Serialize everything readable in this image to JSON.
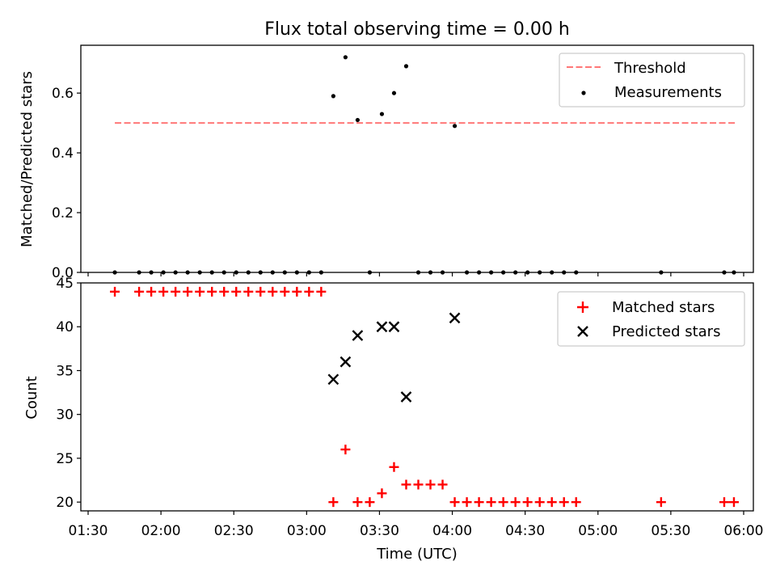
{
  "chart_data": [
    {
      "type": "scatter",
      "title": "Flux total observing time = 0.00 h",
      "ylabel": "Matched/Predicted stars",
      "xlim": [
        "01:27",
        "06:04"
      ],
      "ylim": [
        0,
        0.76
      ],
      "yticks": [
        "0.0",
        "0.2",
        "0.4",
        "0.6"
      ],
      "ytick_values": [
        0,
        0.2,
        0.4,
        0.6
      ],
      "legend_location": "top-right",
      "series": [
        {
          "name": "Threshold",
          "style": "dashed-line",
          "color": "#ff7777",
          "x": [
            "01:41",
            "05:57"
          ],
          "y": [
            0.5,
            0.5
          ]
        },
        {
          "name": "Measurements",
          "style": "points",
          "color": "#000000",
          "x": [
            "01:41",
            "01:51",
            "01:56",
            "02:01",
            "02:06",
            "02:11",
            "02:16",
            "02:21",
            "02:26",
            "02:31",
            "02:36",
            "02:41",
            "02:46",
            "02:51",
            "02:56",
            "03:01",
            "03:06",
            "03:11",
            "03:16",
            "03:21",
            "03:26",
            "03:31",
            "03:36",
            "03:41",
            "03:46",
            "03:51",
            "03:56",
            "04:01",
            "04:06",
            "04:11",
            "04:16",
            "04:21",
            "04:26",
            "04:31",
            "04:36",
            "04:41",
            "04:46",
            "04:51",
            "05:26",
            "05:52",
            "05:56"
          ],
          "y": [
            0,
            0,
            0,
            0,
            0,
            0,
            0,
            0,
            0,
            0,
            0,
            0,
            0,
            0,
            0,
            0,
            0,
            0.59,
            0.72,
            0.51,
            0,
            0.53,
            0.6,
            0.69,
            0,
            0,
            0,
            0.49,
            0,
            0,
            0,
            0,
            0,
            0,
            0,
            0,
            0,
            0,
            0,
            0,
            0
          ]
        }
      ]
    },
    {
      "type": "scatter",
      "xlabel": "Time (UTC)",
      "ylabel": "Count",
      "xlim": [
        "01:27",
        "06:04"
      ],
      "ylim": [
        19,
        45
      ],
      "xticks": [
        "01:30",
        "02:00",
        "02:30",
        "03:00",
        "03:30",
        "04:00",
        "04:30",
        "05:00",
        "05:30",
        "06:00"
      ],
      "yticks": [
        "20",
        "25",
        "30",
        "35",
        "40",
        "45"
      ],
      "ytick_values": [
        20,
        25,
        30,
        35,
        40,
        45
      ],
      "legend_location": "top-right",
      "series": [
        {
          "name": "Matched stars",
          "marker": "plus",
          "color": "#ff0000",
          "x": [
            "01:41",
            "01:51",
            "01:56",
            "02:01",
            "02:06",
            "02:11",
            "02:16",
            "02:21",
            "02:26",
            "02:31",
            "02:36",
            "02:41",
            "02:46",
            "02:51",
            "02:56",
            "03:01",
            "03:06",
            "03:11",
            "03:16",
            "03:21",
            "03:26",
            "03:31",
            "03:36",
            "03:41",
            "03:46",
            "03:51",
            "03:56",
            "04:01",
            "04:06",
            "04:11",
            "04:16",
            "04:21",
            "04:26",
            "04:31",
            "04:36",
            "04:41",
            "04:46",
            "04:51",
            "05:26",
            "05:52",
            "05:56"
          ],
          "y": [
            44,
            44,
            44,
            44,
            44,
            44,
            44,
            44,
            44,
            44,
            44,
            44,
            44,
            44,
            44,
            44,
            44,
            20,
            26,
            20,
            20,
            21,
            24,
            22,
            22,
            22,
            22,
            20,
            20,
            20,
            20,
            20,
            20,
            20,
            20,
            20,
            20,
            20,
            20,
            20,
            20
          ]
        },
        {
          "name": "Predicted stars",
          "marker": "x",
          "color": "#000000",
          "x": [
            "03:11",
            "03:16",
            "03:21",
            "03:31",
            "03:36",
            "03:41",
            "04:01"
          ],
          "y": [
            34,
            36,
            39,
            40,
            40,
            32,
            41
          ]
        }
      ]
    }
  ]
}
